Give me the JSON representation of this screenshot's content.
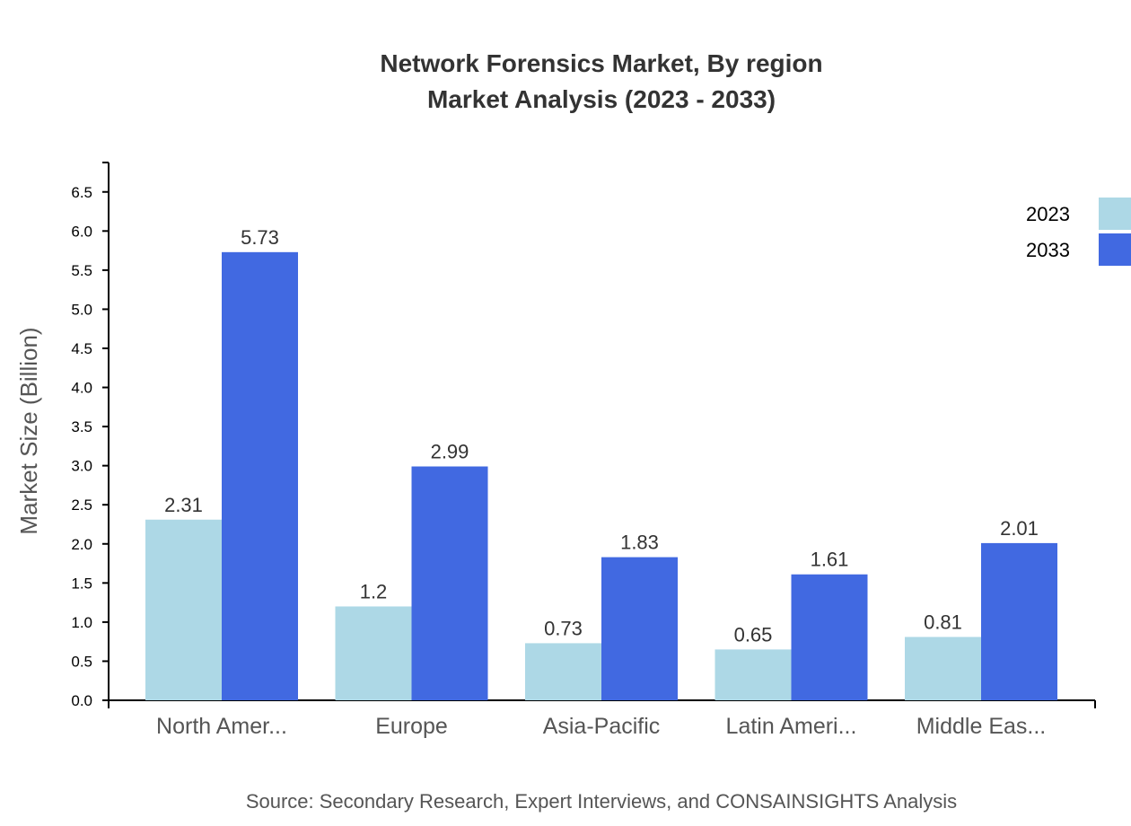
{
  "chart_data": {
    "type": "bar",
    "title": "Network Forensics Market, By region",
    "subtitle": "Market Analysis (2023 - 2033)",
    "categories": [
      "North Amer...",
      "Europe",
      "Asia-Pacific",
      "Latin Ameri...",
      "Middle Eas..."
    ],
    "series": [
      {
        "name": "2023",
        "color": "#add8e6",
        "values": [
          2.31,
          1.2,
          0.73,
          0.65,
          0.81
        ]
      },
      {
        "name": "2033",
        "color": "#4169e1",
        "values": [
          5.73,
          2.99,
          1.83,
          1.61,
          2.01
        ]
      }
    ],
    "xlabel": "",
    "ylabel": "Market Size (Billion)",
    "ylim": [
      0,
      6.876
    ],
    "yticks": [
      "0.0",
      "0.5",
      "1.0",
      "1.5",
      "2.0",
      "2.5",
      "3.0",
      "3.5",
      "4.0",
      "4.5",
      "5.0",
      "5.5",
      "6.0",
      "6.5"
    ],
    "grid": false,
    "legend_position": "top-right",
    "source": "Source: Secondary Research, Expert Interviews, and CONSAINSIGHTS Analysis"
  }
}
